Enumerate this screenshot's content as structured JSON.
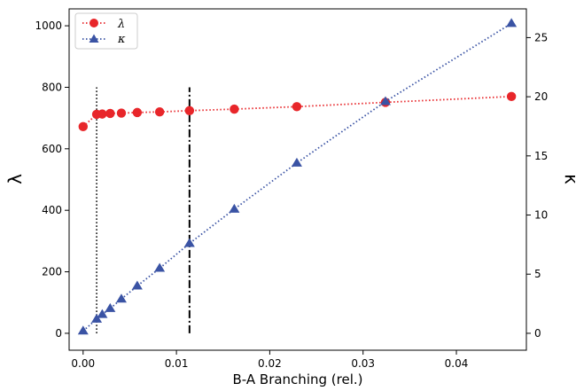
{
  "chart_data": {
    "type": "line",
    "xlabel": "B-A Branching (rel.)",
    "ylabel_left": "λ",
    "ylabel_right": "κ",
    "xlim": [
      -0.0015,
      0.0475
    ],
    "ylim_left": [
      -55,
      1055
    ],
    "ylim_right": [
      -1.43,
      27.43
    ],
    "x_ticks": [
      0.0,
      0.01,
      0.02,
      0.03,
      0.04
    ],
    "x_tick_labels": [
      "0.00",
      "0.01",
      "0.02",
      "0.03",
      "0.04"
    ],
    "y_left_ticks": [
      0,
      200,
      400,
      600,
      800,
      1000
    ],
    "y_left_tick_labels": [
      "0",
      "200",
      "400",
      "600",
      "800",
      "1000"
    ],
    "y_right_ticks": [
      0,
      5,
      10,
      15,
      20,
      25
    ],
    "y_right_tick_labels": [
      "0",
      "5",
      "10",
      "15",
      "20",
      "25"
    ],
    "grid": false,
    "legend_position": "top-left",
    "series": [
      {
        "name": "λ",
        "axis": "left",
        "marker": "circle",
        "color": "#e8262a",
        "x": [
          0.0,
          0.00145,
          0.00205,
          0.0029,
          0.0041,
          0.0058,
          0.0082,
          0.0114,
          0.0162,
          0.0229,
          0.0324,
          0.0459
        ],
        "y": [
          672,
          712,
          713,
          715,
          716,
          718,
          720,
          724,
          729,
          737,
          751,
          770
        ]
      },
      {
        "name": "κ",
        "axis": "right",
        "marker": "triangle",
        "color": "#3a53a4",
        "x": [
          0.0,
          0.00145,
          0.00205,
          0.0029,
          0.0041,
          0.0058,
          0.0082,
          0.0114,
          0.0162,
          0.0229,
          0.0324,
          0.0459
        ],
        "y": [
          0.2,
          1.2,
          1.6,
          2.1,
          2.9,
          4.0,
          5.5,
          7.6,
          10.5,
          14.4,
          19.6,
          26.2
        ]
      }
    ],
    "vlines": [
      {
        "x": 0.00145,
        "y_top": 800,
        "style": "dotted",
        "color": "#000000"
      },
      {
        "x": 0.0114,
        "y_top": 800,
        "style": "dashdot",
        "color": "#000000"
      }
    ]
  }
}
